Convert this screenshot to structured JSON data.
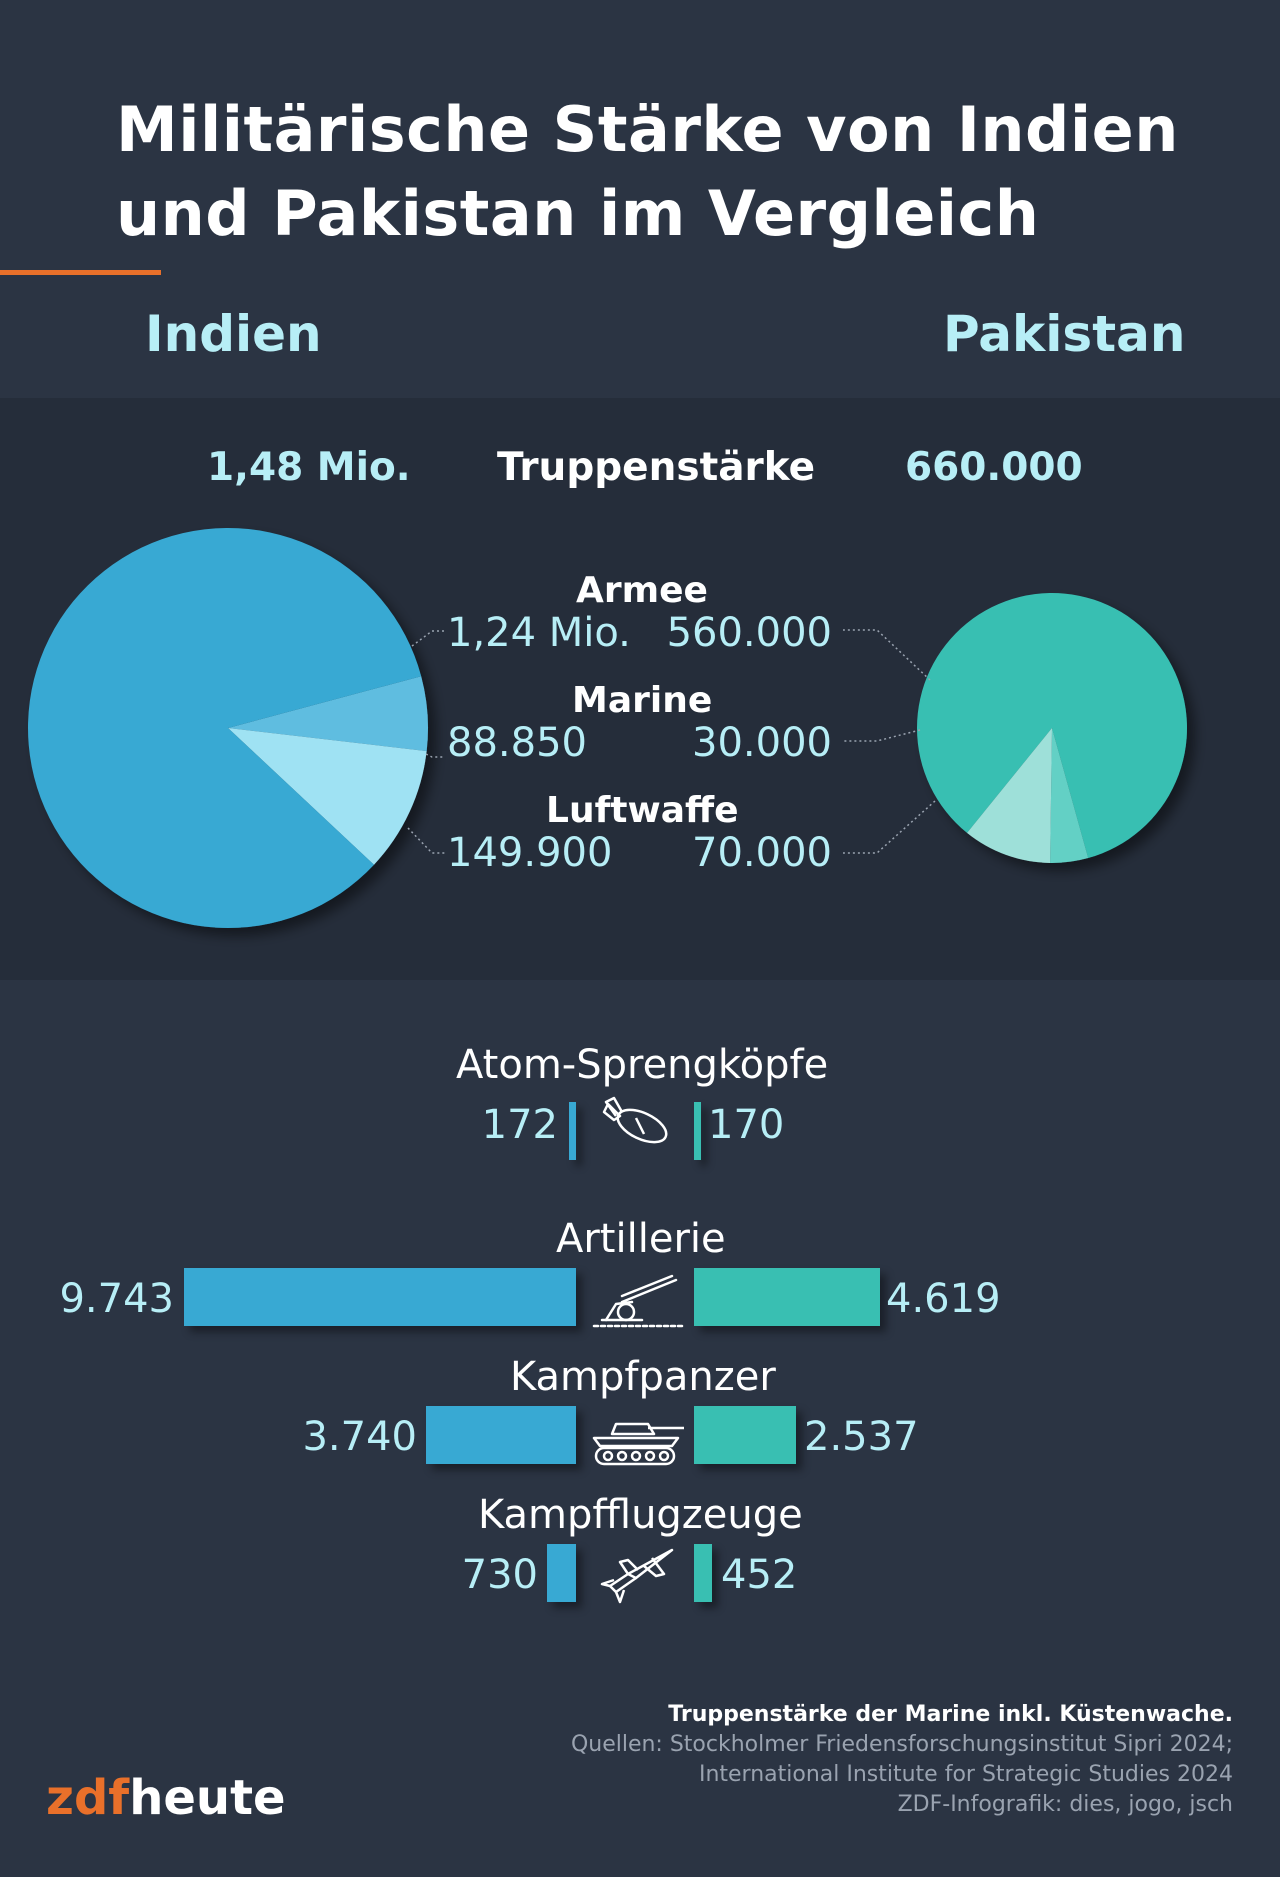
{
  "title": {
    "line1": "Militärische Stärke von Indien",
    "line2": "und Pakistan im Vergleich"
  },
  "countries": {
    "left": "Indien",
    "right": "Pakistan"
  },
  "colors": {
    "india": "#38a9d3",
    "india_marine": "#5ebde0",
    "india_air": "#9fe2f3",
    "pakistan": "#39bfb2",
    "pakistan_marine": "#64d0c5",
    "pakistan_air": "#9ee0d9",
    "accent": "#e9702a"
  },
  "troops": {
    "label": "Truppenstärke",
    "india_total": "1,48 Mio.",
    "pakistan_total": "660.000",
    "rows": [
      {
        "label": "Armee",
        "india": "1,24 Mio.",
        "pakistan": "560.000"
      },
      {
        "label": "Marine",
        "india": "88.850",
        "pakistan": "30.000"
      },
      {
        "label": "Luftwaffe",
        "india": "149.900",
        "pakistan": "70.000"
      }
    ]
  },
  "equipment": [
    {
      "label": "Atom-Sprengköpfe",
      "india": "172",
      "pakistan": "170",
      "icon": "bomb-icon"
    },
    {
      "label": "Artillerie",
      "india": "9.743",
      "pakistan": "4.619",
      "icon": "artillery-icon"
    },
    {
      "label": "Kampfpanzer",
      "india": "3.740",
      "pakistan": "2.537",
      "icon": "tank-icon"
    },
    {
      "label": "Kampfflugzeuge",
      "india": "730",
      "pakistan": "452",
      "icon": "fighter-jet-icon"
    }
  ],
  "chart_data": [
    {
      "type": "pie",
      "title": "Indien",
      "categories": [
        "Armee",
        "Marine",
        "Luftwaffe"
      ],
      "values": [
        1240000,
        88850,
        149900
      ]
    },
    {
      "type": "pie",
      "title": "Pakistan",
      "categories": [
        "Armee",
        "Marine",
        "Luftwaffe"
      ],
      "values": [
        560000,
        30000,
        70000
      ]
    },
    {
      "type": "bar",
      "orientation": "horizontal-diverging",
      "categories": [
        "Atom-Sprengköpfe",
        "Artillerie",
        "Kampfpanzer",
        "Kampfflugzeuge"
      ],
      "series": [
        {
          "name": "Indien",
          "values": [
            172,
            9743,
            3740,
            730
          ]
        },
        {
          "name": "Pakistan",
          "values": [
            170,
            4619,
            2537,
            452
          ]
        }
      ]
    }
  ],
  "footer": {
    "note": "Truppenstärke der Marine inkl. Küstenwache.",
    "source1": "Quellen: Stockholmer Friedensforschungsinstitut Sipri 2024;",
    "source2": "International Institute for Strategic Studies 2024",
    "credit": "ZDF-Infografik: dies, jogo, jsch"
  },
  "logo": {
    "part1": "zdf",
    "part2": "heute"
  }
}
